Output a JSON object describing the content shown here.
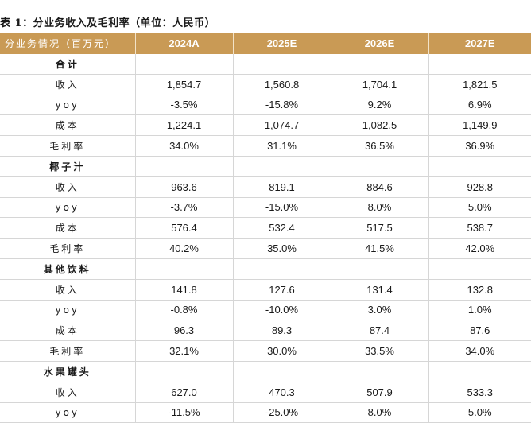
{
  "caption": "表 1：分业务收入及毛利率（单位：人民币）",
  "table": {
    "header": [
      "分业务情况（百万元）",
      "2024A",
      "2025E",
      "2026E",
      "2027E"
    ],
    "rows": [
      {
        "label": "合计",
        "section": true,
        "values": [
          "",
          "",
          "",
          ""
        ]
      },
      {
        "label": "收入",
        "section": false,
        "values": [
          "1,854.7",
          "1,560.8",
          "1,704.1",
          "1,821.5"
        ]
      },
      {
        "label": "yoy",
        "section": false,
        "values": [
          "-3.5%",
          "-15.8%",
          "9.2%",
          "6.9%"
        ]
      },
      {
        "label": "成本",
        "section": false,
        "values": [
          "1,224.1",
          "1,074.7",
          "1,082.5",
          "1,149.9"
        ]
      },
      {
        "label": "毛利率",
        "section": false,
        "values": [
          "34.0%",
          "31.1%",
          "36.5%",
          "36.9%"
        ]
      },
      {
        "label": "椰子汁",
        "section": true,
        "values": [
          "",
          "",
          "",
          ""
        ]
      },
      {
        "label": "收入",
        "section": false,
        "values": [
          "963.6",
          "819.1",
          "884.6",
          "928.8"
        ]
      },
      {
        "label": "yoy",
        "section": false,
        "values": [
          "-3.7%",
          "-15.0%",
          "8.0%",
          "5.0%"
        ]
      },
      {
        "label": "成本",
        "section": false,
        "values": [
          "576.4",
          "532.4",
          "517.5",
          "538.7"
        ]
      },
      {
        "label": "毛利率",
        "section": false,
        "values": [
          "40.2%",
          "35.0%",
          "41.5%",
          "42.0%"
        ]
      },
      {
        "label": "其他饮料",
        "section": true,
        "values": [
          "",
          "",
          "",
          ""
        ]
      },
      {
        "label": "收入",
        "section": false,
        "values": [
          "141.8",
          "127.6",
          "131.4",
          "132.8"
        ]
      },
      {
        "label": "yoy",
        "section": false,
        "values": [
          "-0.8%",
          "-10.0%",
          "3.0%",
          "1.0%"
        ]
      },
      {
        "label": "成本",
        "section": false,
        "values": [
          "96.3",
          "89.3",
          "87.4",
          "87.6"
        ]
      },
      {
        "label": "毛利率",
        "section": false,
        "values": [
          "32.1%",
          "30.0%",
          "33.5%",
          "34.0%"
        ]
      },
      {
        "label": "水果罐头",
        "section": true,
        "values": [
          "",
          "",
          "",
          ""
        ]
      },
      {
        "label": "收入",
        "section": false,
        "values": [
          "627.0",
          "470.3",
          "507.9",
          "533.3"
        ]
      },
      {
        "label": "yoy",
        "section": false,
        "values": [
          "-11.5%",
          "-25.0%",
          "8.0%",
          "5.0%"
        ]
      }
    ]
  },
  "colors": {
    "header_bg": "#c99a55",
    "header_text": "#ffffff",
    "grid": "#d6d6d6"
  }
}
